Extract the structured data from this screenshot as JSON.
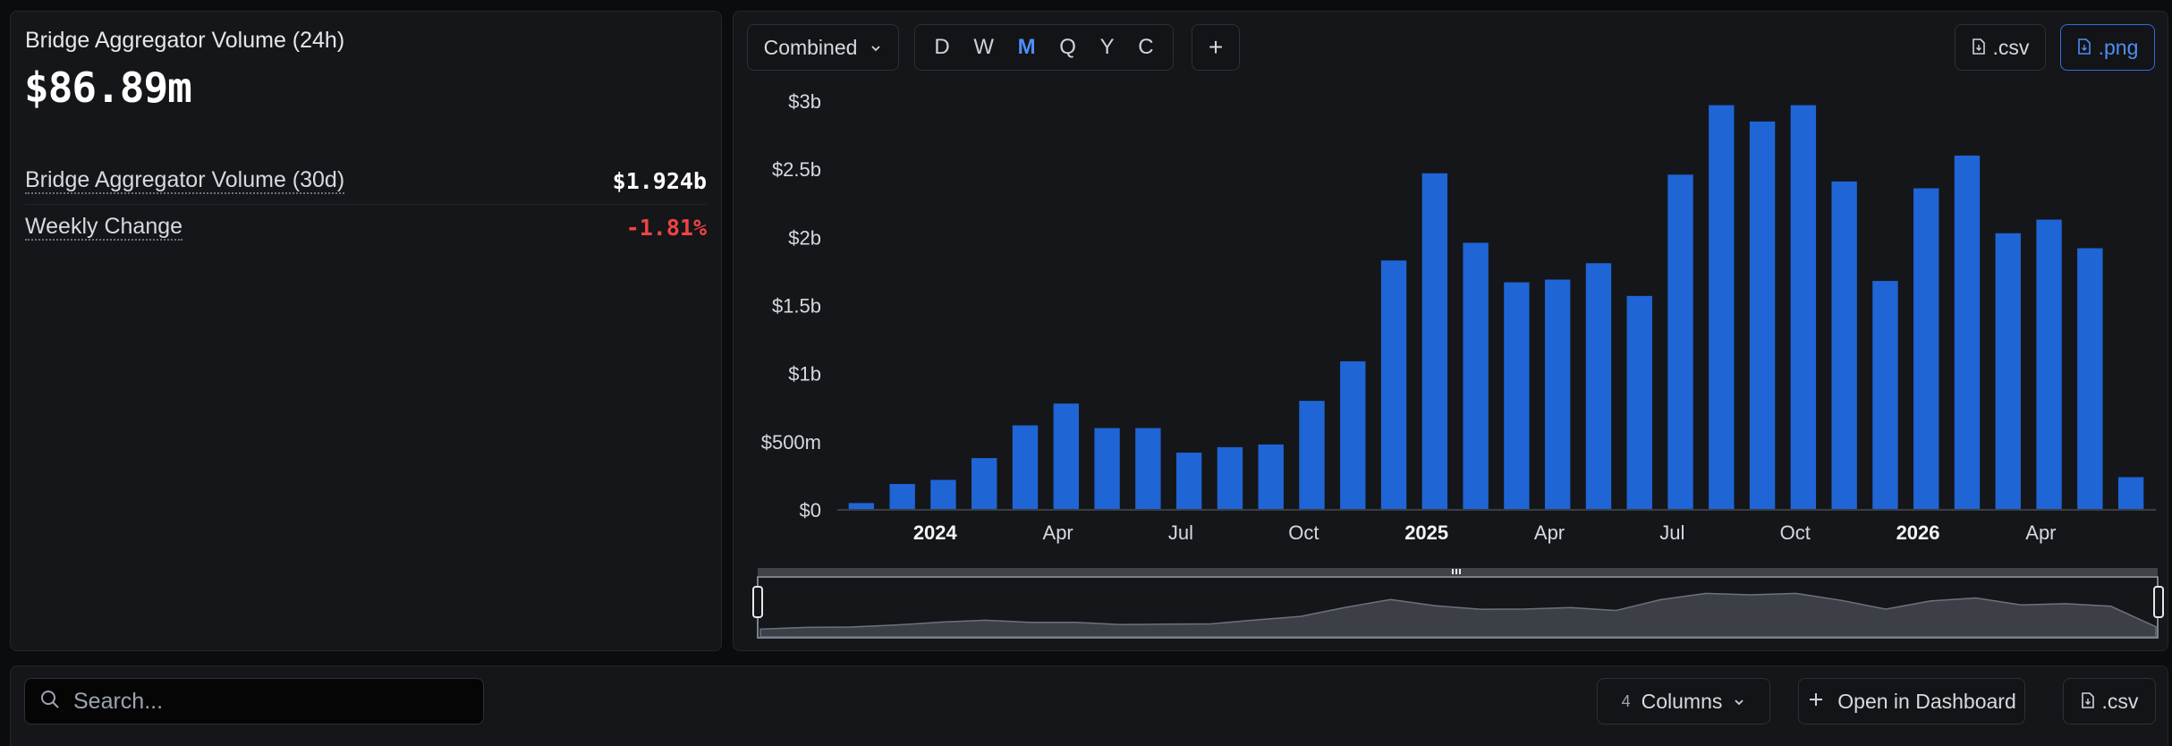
{
  "stats": {
    "title": "Bridge Aggregator Volume (24h)",
    "value": "$86.89m",
    "rows": [
      {
        "label": "Bridge Aggregator Volume (30d)",
        "value": "$1.924b"
      },
      {
        "label": "Weekly Change",
        "value": "-1.81%"
      }
    ]
  },
  "toolbar": {
    "combined_label": "Combined",
    "ranges": [
      "D",
      "W",
      "M",
      "Q",
      "Y",
      "C"
    ],
    "active_range": "M",
    "add_label": "+",
    "csv_label": ".csv",
    "png_label": ".png"
  },
  "chart_data": {
    "type": "bar",
    "series": [
      {
        "values": [
          0.05,
          0.19,
          0.22,
          0.38,
          0.62,
          0.78,
          0.6,
          0.6,
          0.42,
          0.46,
          0.48,
          0.8,
          1.09,
          1.83,
          2.47,
          1.96,
          1.67,
          1.69,
          1.81,
          1.57,
          2.46,
          2.97,
          2.85,
          2.97,
          2.41,
          1.68,
          2.36,
          2.6,
          2.03,
          2.13,
          1.92,
          0.24
        ]
      }
    ],
    "yticks": [
      "$0",
      "$500m",
      "$1b",
      "$1.5b",
      "$2b",
      "$2.5b",
      "$3b"
    ],
    "ylim": [
      0,
      3
    ],
    "yunit": "billions USD",
    "xticks": [
      {
        "label": "2024",
        "index": 2.3,
        "bold": true
      },
      {
        "label": "Apr",
        "index": 5.3,
        "bold": false
      },
      {
        "label": "Jul",
        "index": 8.3,
        "bold": false
      },
      {
        "label": "Oct",
        "index": 11.3,
        "bold": false
      },
      {
        "label": "2025",
        "index": 14.3,
        "bold": true
      },
      {
        "label": "Apr",
        "index": 17.3,
        "bold": false
      },
      {
        "label": "Jul",
        "index": 20.3,
        "bold": false
      },
      {
        "label": "Oct",
        "index": 23.3,
        "bold": false
      },
      {
        "label": "2026",
        "index": 26.3,
        "bold": true
      },
      {
        "label": "Apr",
        "index": 29.3,
        "bold": false
      }
    ],
    "bar_color": "#1f65d6",
    "grid": false
  },
  "table_bar": {
    "search_placeholder": "Search...",
    "columns_count": "4",
    "columns_label": "Columns",
    "dashboard_label": "Open in Dashboard",
    "csv_label": ".csv"
  }
}
